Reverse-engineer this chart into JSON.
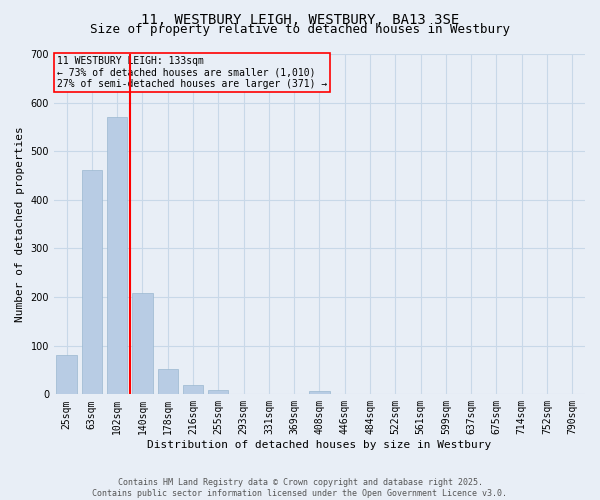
{
  "title": "11, WESTBURY LEIGH, WESTBURY, BA13 3SE",
  "subtitle": "Size of property relative to detached houses in Westbury",
  "xlabel": "Distribution of detached houses by size in Westbury",
  "ylabel": "Number of detached properties",
  "categories": [
    "25sqm",
    "63sqm",
    "102sqm",
    "140sqm",
    "178sqm",
    "216sqm",
    "255sqm",
    "293sqm",
    "331sqm",
    "369sqm",
    "408sqm",
    "446sqm",
    "484sqm",
    "522sqm",
    "561sqm",
    "599sqm",
    "637sqm",
    "675sqm",
    "714sqm",
    "752sqm",
    "790sqm"
  ],
  "values": [
    80,
    462,
    570,
    208,
    52,
    20,
    8,
    0,
    0,
    0,
    6,
    0,
    0,
    0,
    0,
    0,
    0,
    0,
    0,
    0,
    0
  ],
  "bar_color": "#b8cce4",
  "bar_edge_color": "#9ab8d0",
  "grid_color": "#c8d8e8",
  "bg_color": "#e8eef6",
  "red_line_x": 2.5,
  "annotation_title": "11 WESTBURY LEIGH: 133sqm",
  "annotation_line1": "← 73% of detached houses are smaller (1,010)",
  "annotation_line2": "27% of semi-detached houses are larger (371) →",
  "footer_line1": "Contains HM Land Registry data © Crown copyright and database right 2025.",
  "footer_line2": "Contains public sector information licensed under the Open Government Licence v3.0.",
  "ylim": [
    0,
    700
  ],
  "yticks": [
    0,
    100,
    200,
    300,
    400,
    500,
    600,
    700
  ],
  "title_fontsize": 10,
  "subtitle_fontsize": 9,
  "xlabel_fontsize": 8,
  "ylabel_fontsize": 8,
  "tick_fontsize": 7,
  "ann_fontsize": 7,
  "footer_fontsize": 6
}
